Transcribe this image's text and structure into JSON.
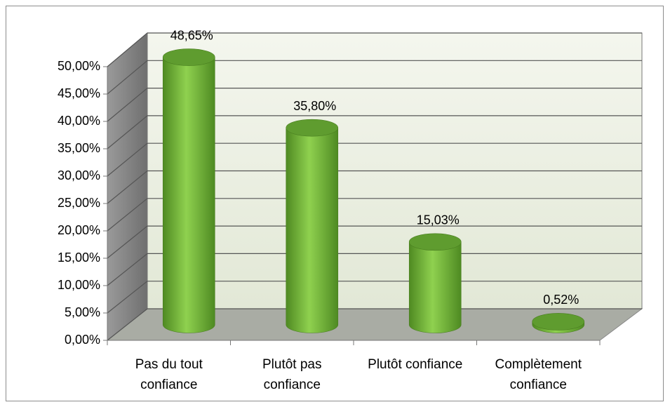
{
  "chart_data": {
    "type": "bar3d",
    "categories": [
      "Pas du tout confiance",
      "Plutôt pas confiance",
      "Plutôt confiance",
      "Complètement confiance"
    ],
    "values": [
      48.65,
      35.8,
      15.03,
      0.52
    ],
    "value_labels": [
      "48,65%",
      "35,80%",
      "15,03%",
      "0,52%"
    ],
    "color": "#6fb13a",
    "ylim": [
      0,
      50
    ],
    "yticks": [
      {
        "value": 0,
        "label": "0,00%"
      },
      {
        "value": 5,
        "label": "5,00%"
      },
      {
        "value": 10,
        "label": "10,00%"
      },
      {
        "value": 15,
        "label": "15,00%"
      },
      {
        "value": 20,
        "label": "20,00%"
      },
      {
        "value": 25,
        "label": "25,00%"
      },
      {
        "value": 30,
        "label": "30,00%"
      },
      {
        "value": 35,
        "label": "35,00%"
      },
      {
        "value": 40,
        "label": "40,00%"
      },
      {
        "value": 45,
        "label": "45,00%"
      },
      {
        "value": 50,
        "label": "50,00%"
      }
    ],
    "grid": true
  }
}
